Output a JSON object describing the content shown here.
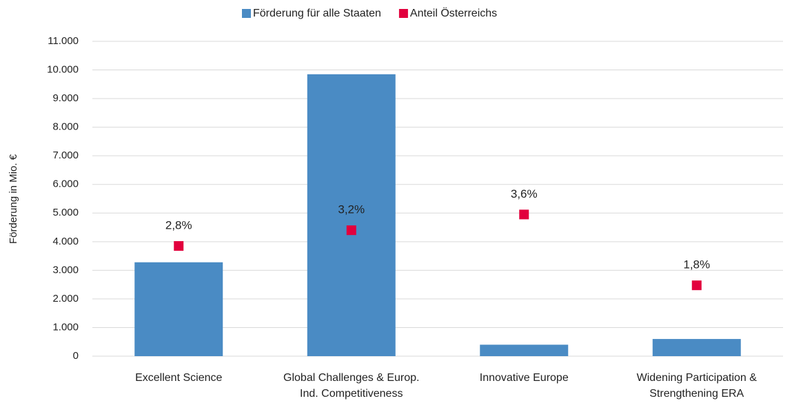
{
  "chart_data": {
    "type": "bar",
    "ylabel": "Förderung in Mio. €",
    "categories": [
      [
        "Excellent Science"
      ],
      [
        "Global Challenges & Europ.",
        "Ind. Competitiveness"
      ],
      [
        "Innovative Europe"
      ],
      [
        "Widening Participation &",
        "Strengthening ERA"
      ]
    ],
    "series": [
      {
        "name": "Förderung für alle Staaten",
        "color": "#4a8bc4",
        "values": [
          3280,
          9850,
          400,
          600
        ]
      },
      {
        "name": "Anteil Österreichs",
        "color": "#e2003d",
        "type": "scatter",
        "axis": "y2",
        "values": [
          2.8,
          3.2,
          3.6,
          1.8
        ],
        "value_labels": [
          "2,8%",
          "3,2%",
          "3,6%",
          "1,8%"
        ]
      }
    ],
    "ylim": [
      0,
      11000
    ],
    "yticks": [
      0,
      {
        "value": 1000,
        "label": "1.000"
      },
      {
        "value": 2000,
        "label": "2.000"
      },
      {
        "value": 3000,
        "label": "3.000"
      },
      {
        "value": 4000,
        "label": "4.000"
      },
      {
        "value": 5000,
        "label": "5.000"
      },
      {
        "value": 6000,
        "label": "6.000"
      },
      {
        "value": 7000,
        "label": "7.000"
      },
      {
        "value": 8000,
        "label": "8.000"
      },
      {
        "value": 9000,
        "label": "9.000"
      },
      {
        "value": 10000,
        "label": "10.000"
      },
      {
        "value": 11000,
        "label": "11.000"
      }
    ],
    "y2lim": [
      0,
      8
    ],
    "grid": true,
    "legend": "top"
  }
}
